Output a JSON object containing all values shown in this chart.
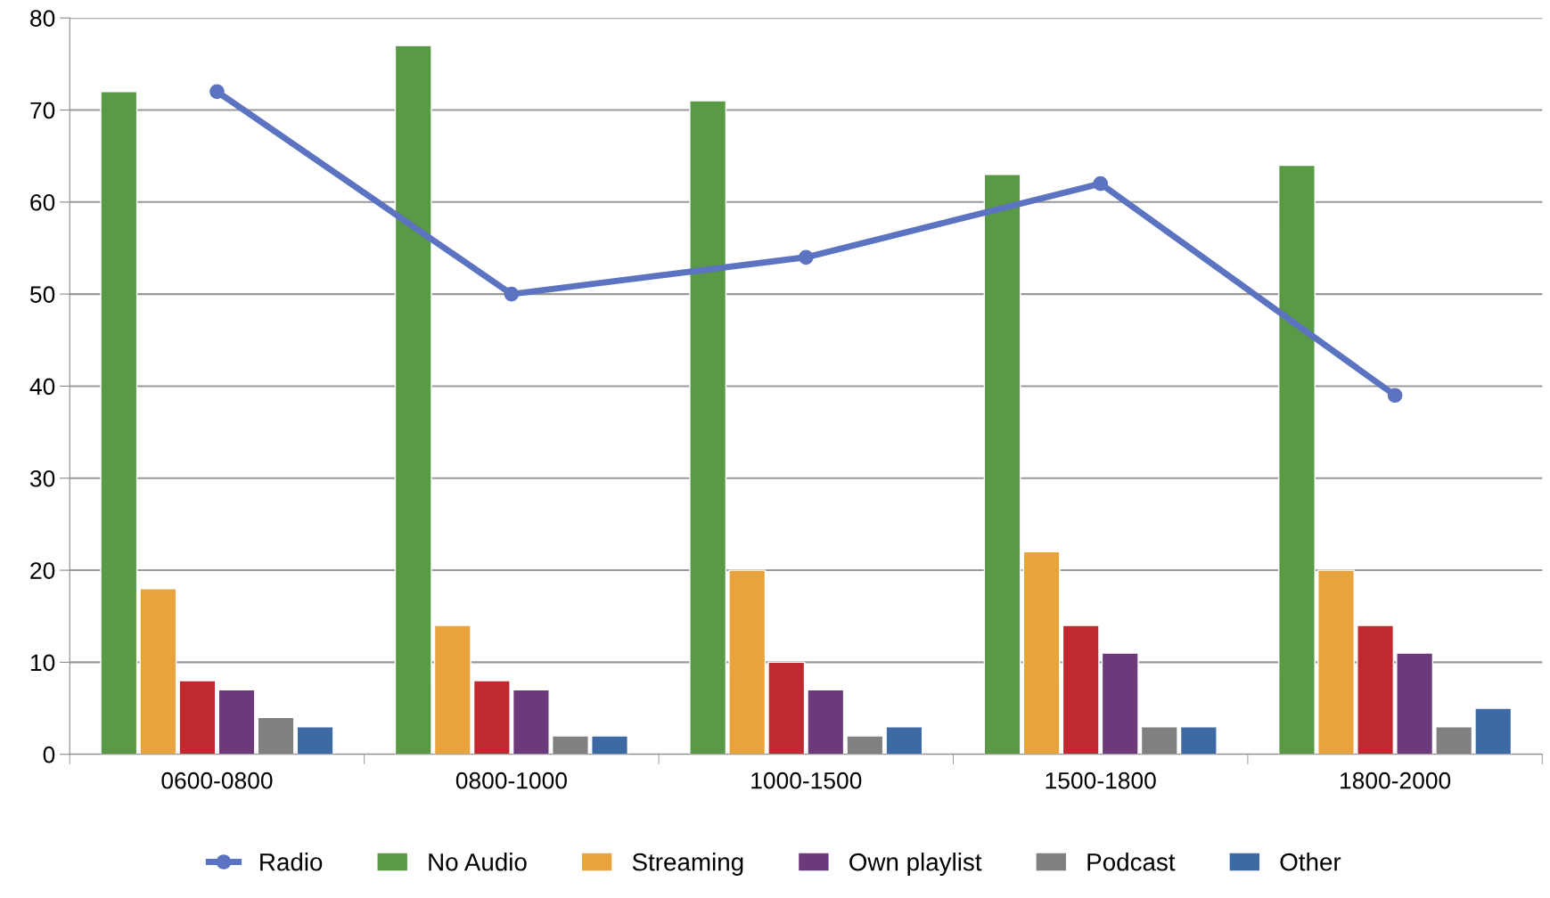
{
  "chart_data": {
    "type": "bar",
    "categories": [
      "0600-0800",
      "0800-1000",
      "1000-1500",
      "1500-1800",
      "1800-2000"
    ],
    "series": [
      {
        "name": "Radio",
        "type": "line",
        "color": "#5b73c0",
        "values": [
          72,
          50,
          54,
          62,
          39
        ],
        "marker": "circle"
      },
      {
        "name": "No Audio",
        "color": "#5a9a46",
        "values": [
          72,
          77,
          71,
          63,
          64
        ]
      },
      {
        "name": "Streaming",
        "color": "#e8a33d",
        "values": [
          18,
          14,
          20,
          22,
          20
        ]
      },
      {
        "color": "#c0292f",
        "values": [
          8,
          8,
          10,
          14,
          14
        ]
      },
      {
        "name": "Own playlist",
        "color": "#6c3a7a",
        "values": [
          7,
          7,
          7,
          11,
          11
        ]
      },
      {
        "name": "Podcast",
        "color": "#808080",
        "values": [
          4,
          2,
          2,
          3,
          3
        ]
      },
      {
        "name": "Other",
        "color": "#3e6aa3",
        "values": [
          3,
          2,
          3,
          3,
          5
        ]
      }
    ],
    "ylim": [
      0,
      80
    ],
    "yticks": [
      0,
      10,
      20,
      30,
      40,
      50,
      60,
      70,
      80
    ],
    "grid": "y",
    "legend": "bottom"
  }
}
